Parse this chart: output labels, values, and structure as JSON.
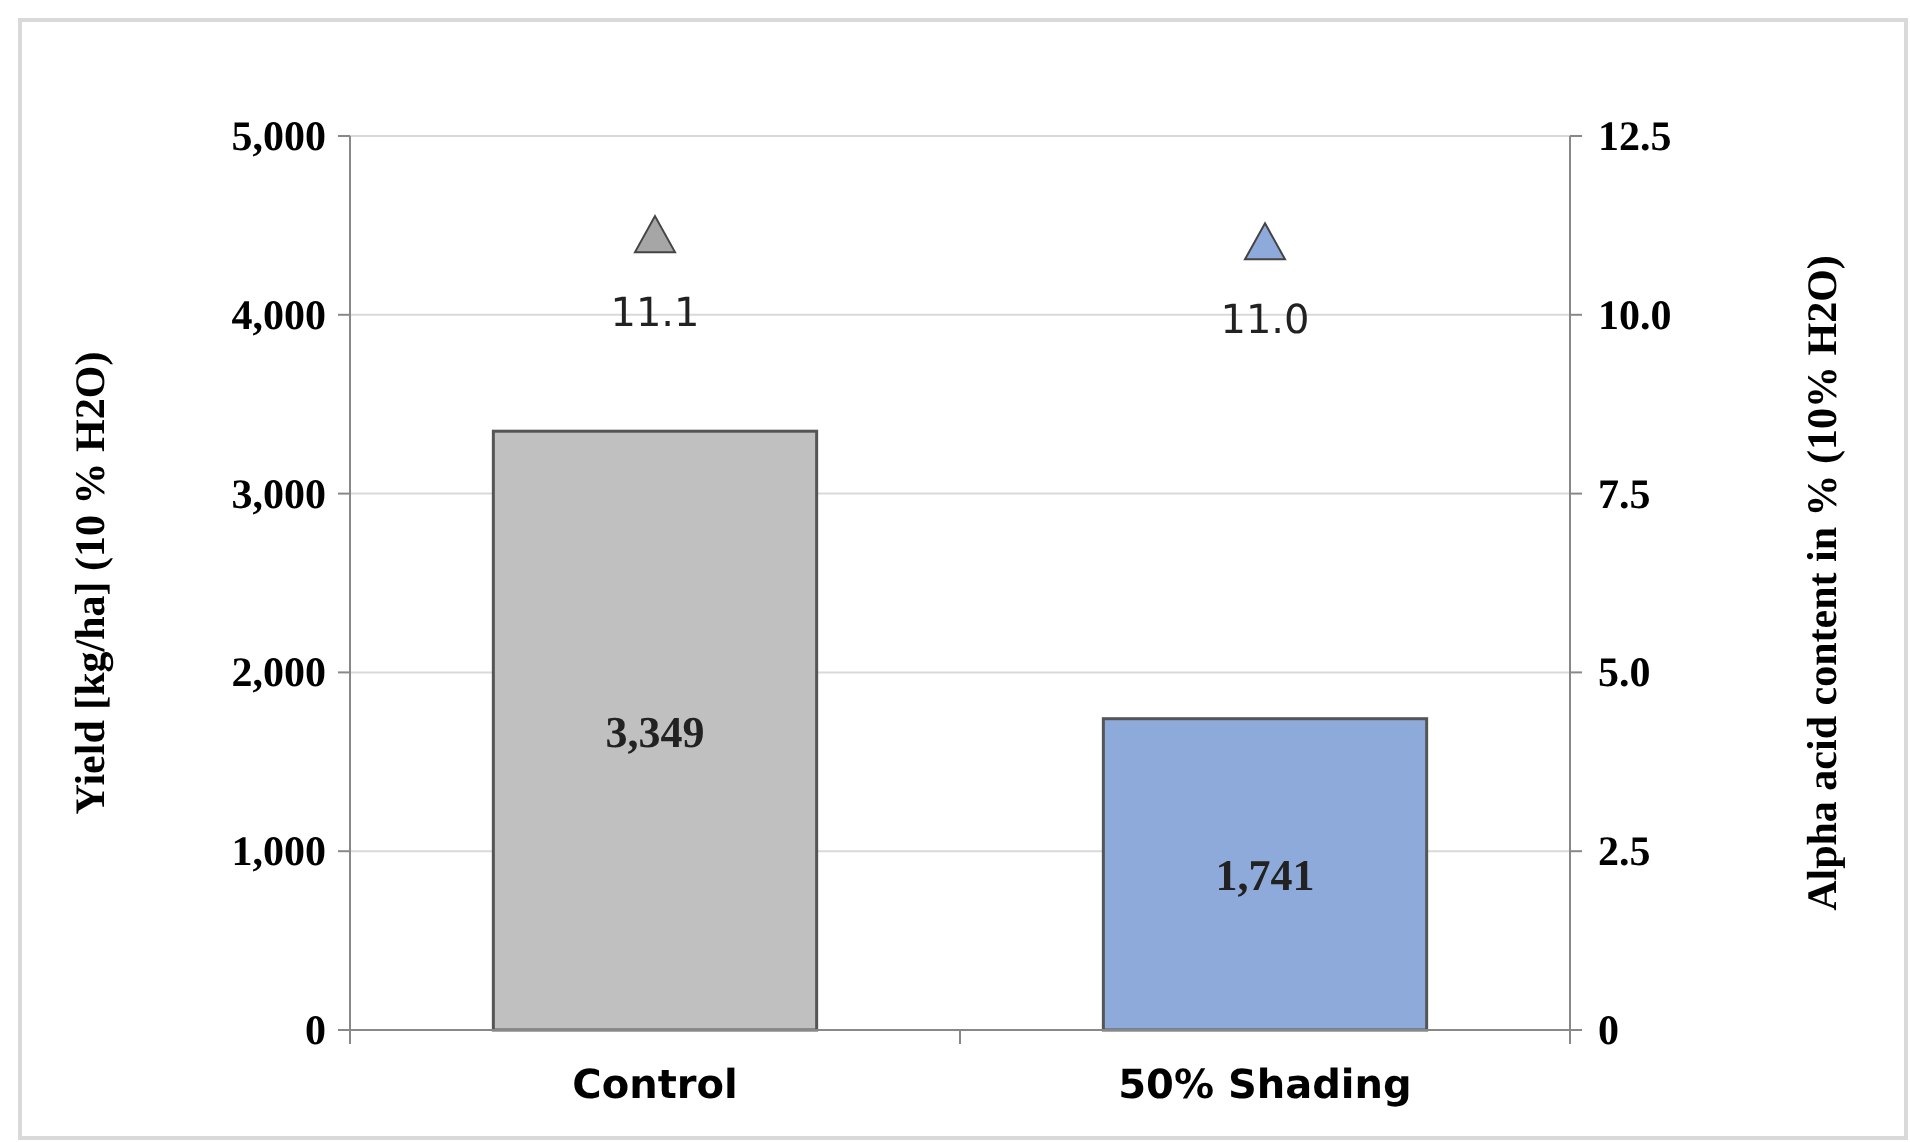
{
  "chart_data": {
    "type": "bar",
    "ylabel": "Yield [kg/ha] (10 % H2O)",
    "y2label": "Alpha acid content in % (10% H2O)",
    "categories": [
      "Control",
      "50% Shading"
    ],
    "series": [
      {
        "values": [
          3349,
          1741
        ],
        "colors": [
          "#c0c0c0",
          "#8eaadb"
        ],
        "value_labels": [
          "3,349",
          "1,741"
        ]
      },
      {
        "type": "scatter",
        "axis": "y2",
        "values": [
          11.1,
          11.0
        ],
        "colors": [
          "#a6a6a6",
          "#8eaadb"
        ],
        "value_labels": [
          "11.1",
          "11.0"
        ]
      }
    ],
    "ylim": [
      0,
      5000
    ],
    "yticks": [
      {
        "value": 0,
        "label": "0"
      },
      {
        "value": 1000,
        "label": "1,000"
      },
      {
        "value": 2000,
        "label": "2,000"
      },
      {
        "value": 3000,
        "label": "3,000"
      },
      {
        "value": 4000,
        "label": "4,000"
      },
      {
        "value": 5000,
        "label": "5,000"
      }
    ],
    "y2lim": [
      0,
      12.5
    ],
    "y2ticks": [
      {
        "value": 0,
        "label": "0"
      },
      {
        "value": 2.5,
        "label": "2.5"
      },
      {
        "value": 5,
        "label": "5.0"
      },
      {
        "value": 7.5,
        "label": "7.5"
      },
      {
        "value": 10,
        "label": "10.0"
      },
      {
        "value": 12.5,
        "label": "12.5"
      }
    ],
    "grid": "y",
    "marker": "triangle",
    "data_labels": true
  }
}
